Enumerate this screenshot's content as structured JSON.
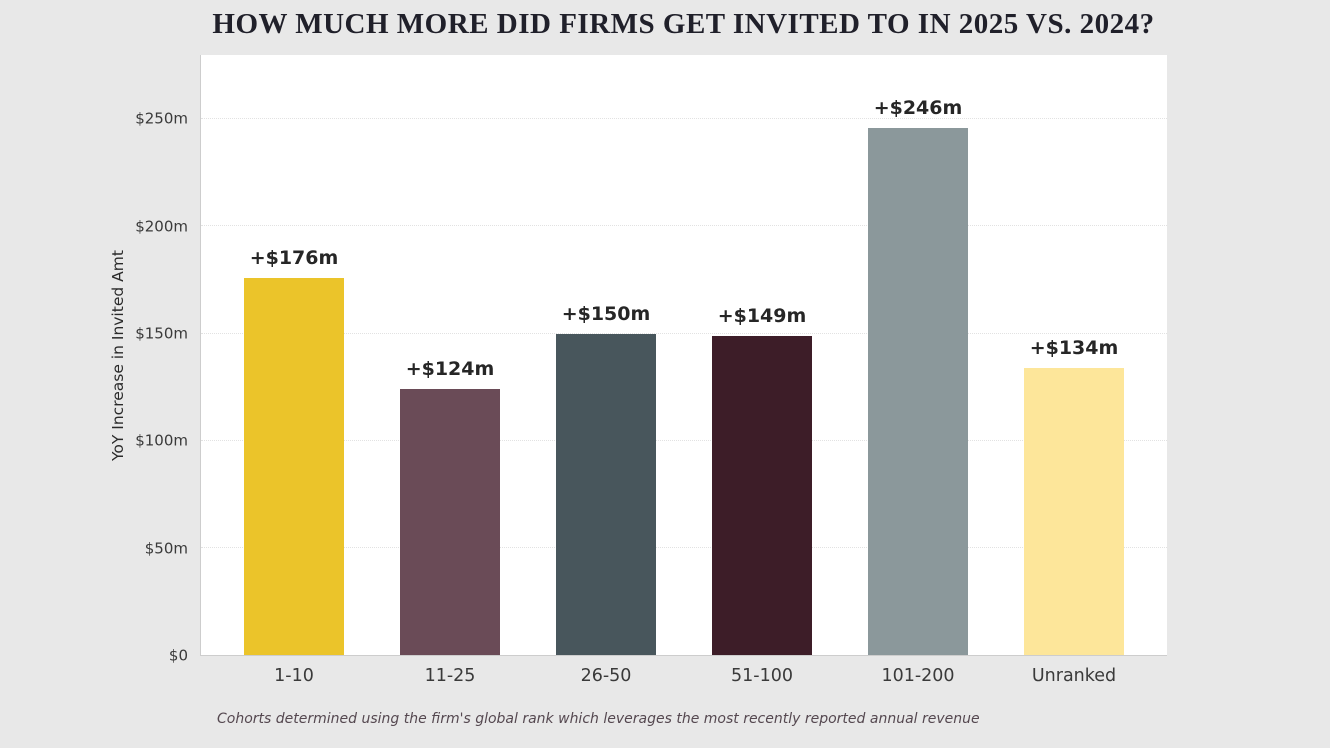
{
  "chart_data": {
    "type": "bar",
    "title": "HOW MUCH MORE DID FIRMS GET INVITED TO IN 2025 VS. 2024?",
    "xlabel": "",
    "ylabel": "YoY Increase in Invited Amt",
    "categories": [
      "1-10",
      "11-25",
      "26-50",
      "51-100",
      "101-200",
      "Unranked"
    ],
    "values": [
      176,
      124,
      150,
      149,
      246,
      134
    ],
    "bar_labels": [
      "+$176m",
      "+$124m",
      "+$150m",
      "+$149m",
      "+$246m",
      "+$134m"
    ],
    "bar_colors": [
      "#ebc42a",
      "#6a4b57",
      "#48565c",
      "#3d1d28",
      "#8b989b",
      "#fde69a"
    ],
    "ylim": [
      0,
      280
    ],
    "yticks": [
      {
        "value": 0,
        "label": "$0"
      },
      {
        "value": 50,
        "label": "$50m"
      },
      {
        "value": 100,
        "label": "$100m"
      },
      {
        "value": 150,
        "label": "$150m"
      },
      {
        "value": 200,
        "label": "$200m"
      },
      {
        "value": 250,
        "label": "$250m"
      }
    ],
    "grid": true,
    "legend": null,
    "note": "Cohorts determined using the firm's global rank which leverages the most recently reported annual revenue"
  },
  "colors": {
    "background": "#e8e8e8",
    "plot_background": "#ffffff",
    "title_text": "#20202a",
    "axis_text": "#3a3a3a",
    "value_label_text": "#262626",
    "note_text": "#554850",
    "gridline": "#e2e2e2",
    "spine": "#cdcdcd"
  }
}
